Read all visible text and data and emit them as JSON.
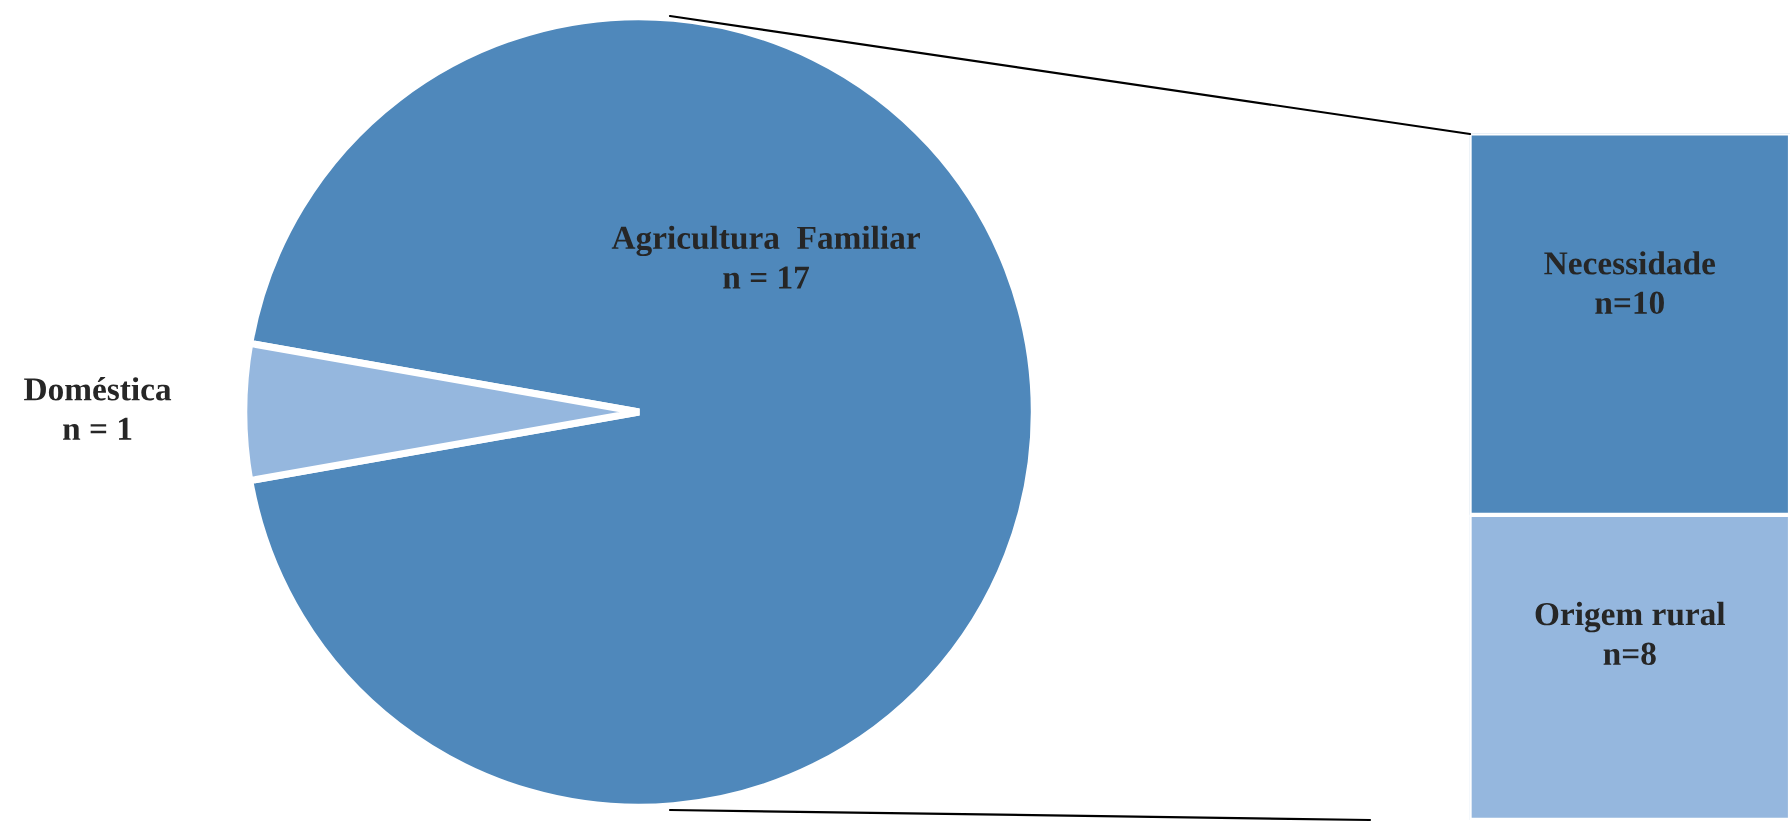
{
  "chart_data": [
    {
      "type": "pie",
      "categories": [
        "Agricultura  Familiar",
        "Doméstica"
      ],
      "values": [
        17,
        1
      ],
      "colors": [
        "#4f88bb",
        "#95b7de"
      ],
      "value_labels": [
        "n = 17",
        "n = 1"
      ]
    },
    {
      "type": "bar",
      "stacked": true,
      "categories": [
        null
      ],
      "series": [
        {
          "name": "Origem rural",
          "color": "#95b7de",
          "values": [
            8
          ],
          "value_labels": [
            "n=8"
          ]
        },
        {
          "name": "Necessidade",
          "color": "#4f88bb",
          "values": [
            10
          ],
          "value_labels": [
            "n=10"
          ]
        }
      ]
    }
  ]
}
